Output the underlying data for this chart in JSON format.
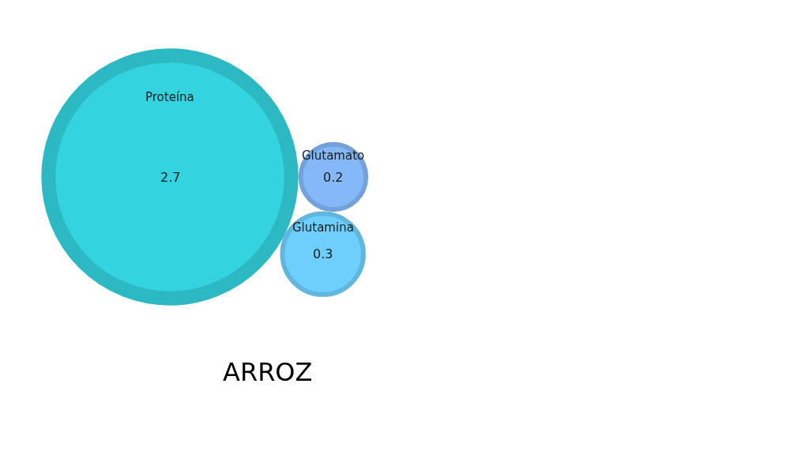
{
  "chart_data": {
    "type": "other",
    "title": "ARROZ",
    "categories": [
      "Proteína",
      "Glutamato",
      "Glutamina"
    ],
    "values": [
      2.7,
      0.2,
      0.3
    ],
    "colors": [
      "#33d3df",
      "#84b8f8",
      "#6fcffc"
    ],
    "data_labels": true
  }
}
